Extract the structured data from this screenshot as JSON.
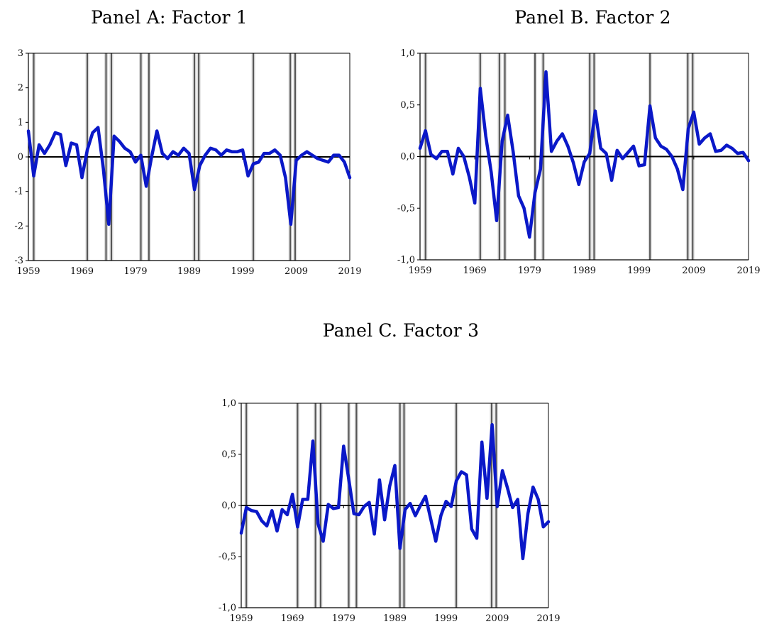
{
  "recession_years": [
    1960,
    1970,
    1973.5,
    1974.5,
    1980,
    1981.5,
    1990,
    1990.8,
    2001,
    2007.9,
    2008.8
  ],
  "chart_data": [
    {
      "id": "panel-a",
      "type": "line",
      "title": "Panel A: Factor 1",
      "xlim": [
        1959,
        2019
      ],
      "ylim": [
        -3,
        3
      ],
      "yticks": [
        3,
        2,
        1,
        0,
        -1,
        -2,
        -3
      ],
      "ytick_labels": [
        "3",
        "2",
        "1",
        "0",
        "-1",
        "-2",
        "-3"
      ],
      "xticks": [
        1959,
        1969,
        1979,
        1989,
        1999,
        2009,
        2019
      ],
      "xtick_labels": [
        "1959",
        "1969",
        "1979",
        "1989",
        "1999",
        "2009",
        "2019"
      ],
      "line_color": "#0a18c8",
      "x": [
        1959,
        1960,
        1961,
        1962,
        1963,
        1964,
        1965,
        1966,
        1967,
        1968,
        1969,
        1970,
        1971,
        1972,
        1973,
        1974,
        1975,
        1976,
        1977,
        1978,
        1979,
        1980,
        1981,
        1982,
        1983,
        1984,
        1985,
        1986,
        1987,
        1988,
        1989,
        1990,
        1991,
        1992,
        1993,
        1994,
        1995,
        1996,
        1997,
        1998,
        1999,
        2000,
        2001,
        2002,
        2003,
        2004,
        2005,
        2006,
        2007,
        2008,
        2009,
        2010,
        2011,
        2012,
        2013,
        2014,
        2015,
        2016,
        2017,
        2018,
        2019
      ],
      "values": [
        0.75,
        -0.55,
        0.35,
        0.1,
        0.35,
        0.7,
        0.65,
        -0.25,
        0.4,
        0.35,
        -0.6,
        0.2,
        0.7,
        0.85,
        -0.35,
        -1.95,
        0.6,
        0.45,
        0.25,
        0.15,
        -0.15,
        0.05,
        -0.85,
        0.0,
        0.75,
        0.1,
        -0.05,
        0.15,
        0.05,
        0.25,
        0.1,
        -0.95,
        -0.25,
        0.05,
        0.25,
        0.2,
        0.05,
        0.2,
        0.15,
        0.15,
        0.2,
        -0.55,
        -0.2,
        -0.15,
        0.1,
        0.1,
        0.2,
        0.05,
        -0.6,
        -1.95,
        -0.1,
        0.05,
        0.15,
        0.05,
        -0.05,
        -0.1,
        -0.15,
        0.05,
        0.05,
        -0.15,
        -0.6
      ]
    },
    {
      "id": "panel-b",
      "type": "line",
      "title": "Panel B. Factor 2",
      "xlim": [
        1959,
        2019
      ],
      "ylim": [
        -1.0,
        1.0
      ],
      "yticks": [
        1.0,
        0.5,
        0.0,
        -0.5,
        -1.0
      ],
      "ytick_labels": [
        "1,0",
        "0,5",
        "0,0",
        "-0,5",
        "-1,0"
      ],
      "xticks": [
        1959,
        1969,
        1979,
        1989,
        1999,
        2009,
        2019
      ],
      "xtick_labels": [
        "1959",
        "1969",
        "1979",
        "1989",
        "1999",
        "2009",
        "2019"
      ],
      "line_color": "#0a18c8",
      "x": [
        1959,
        1960,
        1961,
        1962,
        1963,
        1964,
        1965,
        1966,
        1967,
        1968,
        1969,
        1970,
        1971,
        1972,
        1973,
        1974,
        1975,
        1976,
        1977,
        1978,
        1979,
        1980,
        1981,
        1982,
        1983,
        1984,
        1985,
        1986,
        1987,
        1988,
        1989,
        1990,
        1991,
        1992,
        1993,
        1994,
        1995,
        1996,
        1997,
        1998,
        1999,
        2000,
        2001,
        2002,
        2003,
        2004,
        2005,
        2006,
        2007,
        2008,
        2009,
        2010,
        2011,
        2012,
        2013,
        2014,
        2015,
        2016,
        2017,
        2018,
        2019
      ],
      "values": [
        0.08,
        0.25,
        0.02,
        -0.02,
        0.05,
        0.05,
        -0.17,
        0.08,
        0.0,
        -0.2,
        -0.45,
        0.66,
        0.2,
        -0.15,
        -0.62,
        0.15,
        0.4,
        0.05,
        -0.38,
        -0.5,
        -0.78,
        -0.35,
        -0.12,
        0.82,
        0.05,
        0.15,
        0.22,
        0.1,
        -0.06,
        -0.27,
        -0.05,
        0.03,
        0.44,
        0.08,
        0.03,
        -0.23,
        0.06,
        -0.02,
        0.04,
        0.1,
        -0.09,
        -0.08,
        0.49,
        0.18,
        0.1,
        0.07,
        0.0,
        -0.12,
        -0.32,
        0.27,
        0.43,
        0.12,
        0.18,
        0.22,
        0.05,
        0.06,
        0.11,
        0.08,
        0.03,
        0.04,
        -0.04
      ]
    },
    {
      "id": "panel-c",
      "type": "line",
      "title": "Panel C. Factor 3",
      "xlim": [
        1959,
        2019
      ],
      "ylim": [
        -1.0,
        1.0
      ],
      "yticks": [
        1.0,
        0.5,
        0.0,
        -0.5,
        -1.0
      ],
      "ytick_labels": [
        "1,0",
        "0,5",
        "0,0",
        "-0,5",
        "-1,0"
      ],
      "xticks": [
        1959,
        1969,
        1979,
        1989,
        1999,
        2009,
        2019
      ],
      "xtick_labels": [
        "1959",
        "1969",
        "1979",
        "1989",
        "1999",
        "2009",
        "2019"
      ],
      "line_color": "#0a18c8",
      "x": [
        1959,
        1960,
        1961,
        1962,
        1963,
        1964,
        1965,
        1966,
        1967,
        1968,
        1969,
        1970,
        1971,
        1972,
        1973,
        1974,
        1975,
        1976,
        1977,
        1978,
        1979,
        1980,
        1981,
        1982,
        1983,
        1984,
        1985,
        1986,
        1987,
        1988,
        1989,
        1990,
        1991,
        1992,
        1993,
        1994,
        1995,
        1996,
        1997,
        1998,
        1999,
        2000,
        2001,
        2002,
        2003,
        2004,
        2005,
        2006,
        2007,
        2008,
        2009,
        2010,
        2011,
        2012,
        2013,
        2014,
        2015,
        2016,
        2017,
        2018,
        2019
      ],
      "values": [
        -0.27,
        -0.02,
        -0.05,
        -0.06,
        -0.15,
        -0.2,
        -0.05,
        -0.25,
        -0.04,
        -0.09,
        0.11,
        -0.21,
        0.06,
        0.06,
        0.63,
        -0.18,
        -0.35,
        0.01,
        -0.03,
        -0.02,
        0.58,
        0.26,
        -0.08,
        -0.09,
        -0.01,
        0.03,
        -0.28,
        0.25,
        -0.14,
        0.19,
        0.39,
        -0.42,
        -0.04,
        0.02,
        -0.1,
        0.0,
        0.09,
        -0.13,
        -0.35,
        -0.1,
        0.04,
        -0.01,
        0.24,
        0.33,
        0.3,
        -0.23,
        -0.32,
        0.62,
        0.07,
        0.79,
        -0.01,
        0.34,
        0.17,
        -0.02,
        0.06,
        -0.52,
        -0.08,
        0.18,
        0.06,
        -0.21,
        -0.16
      ]
    }
  ]
}
